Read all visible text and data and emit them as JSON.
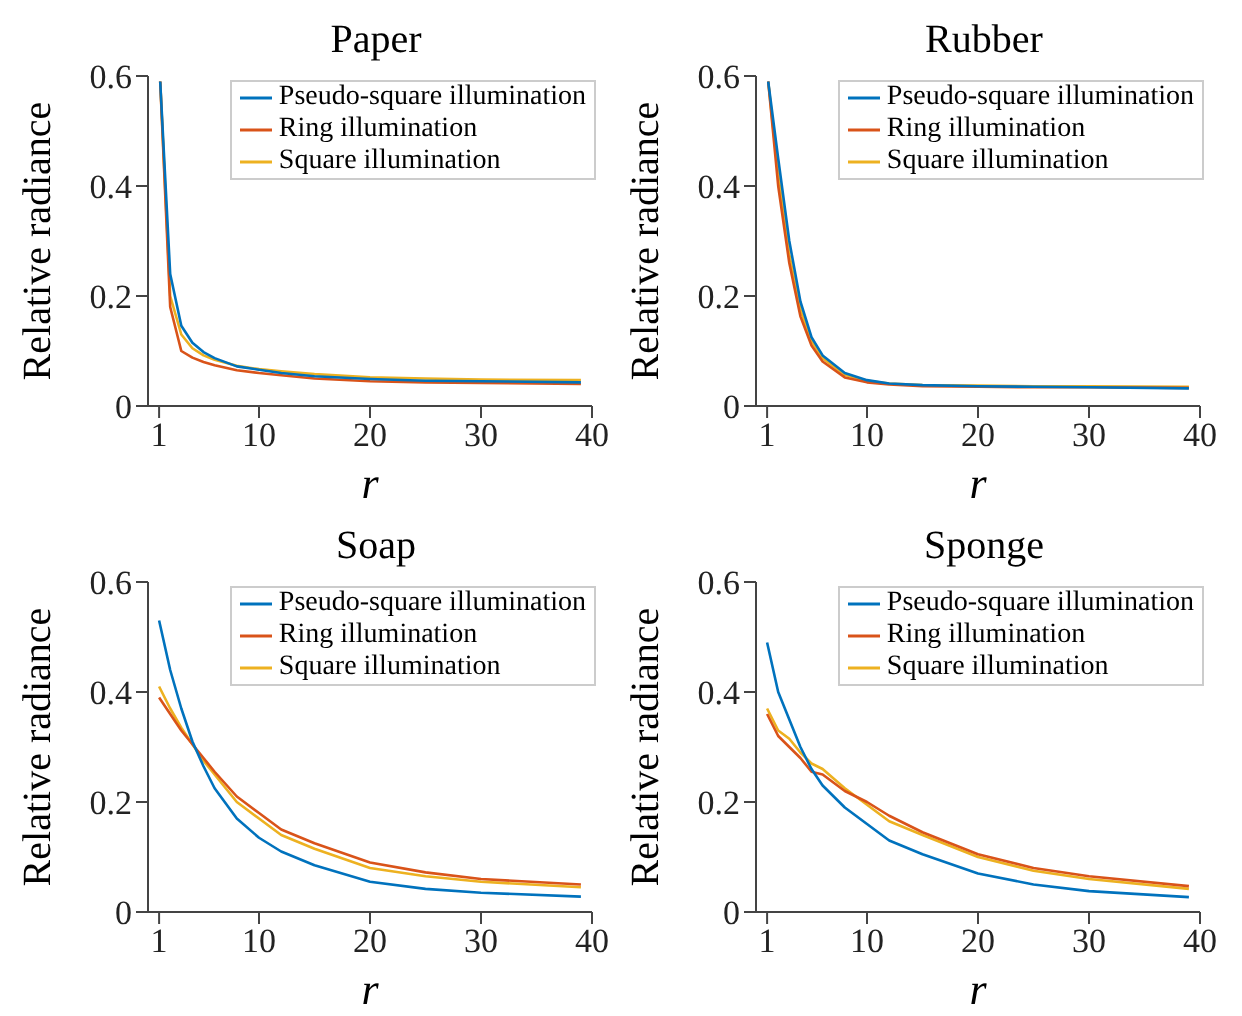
{
  "chart_data": [
    {
      "type": "line",
      "title": "Paper",
      "xlabel": "r",
      "ylabel": "Relative radiance",
      "x": [
        1.1,
        2,
        3,
        4,
        5,
        6,
        8,
        10,
        12,
        15,
        20,
        25,
        30,
        39
      ],
      "xlim": [
        0,
        40
      ],
      "xticks": [
        1,
        10,
        20,
        30,
        40
      ],
      "ylim": [
        0,
        0.6
      ],
      "yticks": [
        0,
        0.2,
        0.4,
        0.6
      ],
      "grid": false,
      "legend": "top right",
      "marker": "none",
      "line_style": "solid",
      "series": [
        {
          "name": "Pseudo-square illumination",
          "color": "#0072bd",
          "values": [
            0.59,
            0.24,
            0.146,
            0.115,
            0.098,
            0.087,
            0.072,
            0.066,
            0.06,
            0.054,
            0.049,
            0.046,
            0.045,
            0.043
          ]
        },
        {
          "name": "Ring illumination",
          "color": "#d95319",
          "values": [
            0.59,
            0.18,
            0.1,
            0.088,
            0.08,
            0.074,
            0.065,
            0.06,
            0.056,
            0.05,
            0.045,
            0.043,
            0.042,
            0.04
          ]
        },
        {
          "name": "Square illumination",
          "color": "#edb120",
          "values": [
            0.59,
            0.2,
            0.13,
            0.105,
            0.092,
            0.084,
            0.073,
            0.067,
            0.063,
            0.058,
            0.052,
            0.05,
            0.048,
            0.047
          ]
        }
      ]
    },
    {
      "type": "line",
      "title": "Rubber",
      "xlabel": "r",
      "ylabel": "Relative radiance",
      "x": [
        1.1,
        2,
        3,
        4,
        5,
        6,
        8,
        10,
        12,
        15,
        20,
        25,
        30,
        39
      ],
      "xlim": [
        0,
        40
      ],
      "xticks": [
        1,
        10,
        20,
        30,
        40
      ],
      "ylim": [
        0,
        0.6
      ],
      "yticks": [
        0,
        0.2,
        0.4,
        0.6
      ],
      "grid": false,
      "legend": "top right",
      "marker": "none",
      "line_style": "solid",
      "series": [
        {
          "name": "Pseudo-square illumination",
          "color": "#0072bd",
          "values": [
            0.59,
            0.45,
            0.3,
            0.19,
            0.125,
            0.092,
            0.06,
            0.047,
            0.041,
            0.038,
            0.036,
            0.035,
            0.034,
            0.032
          ]
        },
        {
          "name": "Ring illumination",
          "color": "#d95319",
          "values": [
            0.59,
            0.4,
            0.26,
            0.163,
            0.11,
            0.081,
            0.052,
            0.043,
            0.039,
            0.036,
            0.035,
            0.034,
            0.034,
            0.033
          ]
        },
        {
          "name": "Square illumination",
          "color": "#edb120",
          "values": [
            0.59,
            0.42,
            0.275,
            0.175,
            0.118,
            0.087,
            0.057,
            0.046,
            0.041,
            0.038,
            0.037,
            0.036,
            0.036,
            0.035
          ]
        }
      ]
    },
    {
      "type": "line",
      "title": "Soap",
      "xlabel": "r",
      "ylabel": "Relative radiance",
      "x": [
        1,
        2,
        3,
        4,
        5,
        6,
        8,
        10,
        12,
        15,
        20,
        25,
        30,
        39
      ],
      "xlim": [
        0,
        40
      ],
      "xticks": [
        1,
        10,
        20,
        30,
        40
      ],
      "ylim": [
        0,
        0.6
      ],
      "yticks": [
        0,
        0.2,
        0.4,
        0.6
      ],
      "grid": false,
      "legend": "top right",
      "marker": "none",
      "line_style": "solid",
      "series": [
        {
          "name": "Pseudo-square illumination",
          "color": "#0072bd",
          "values": [
            0.53,
            0.44,
            0.37,
            0.31,
            0.265,
            0.225,
            0.17,
            0.135,
            0.11,
            0.085,
            0.055,
            0.042,
            0.035,
            0.028
          ]
        },
        {
          "name": "Ring illumination",
          "color": "#d95319",
          "values": [
            0.39,
            0.36,
            0.33,
            0.305,
            0.28,
            0.255,
            0.21,
            0.18,
            0.15,
            0.125,
            0.09,
            0.072,
            0.06,
            0.05
          ]
        },
        {
          "name": "Square illumination",
          "color": "#edb120",
          "values": [
            0.41,
            0.37,
            0.335,
            0.305,
            0.275,
            0.25,
            0.2,
            0.17,
            0.14,
            0.115,
            0.08,
            0.065,
            0.055,
            0.045
          ]
        }
      ]
    },
    {
      "type": "line",
      "title": "Sponge",
      "xlabel": "r",
      "ylabel": "Relative radiance",
      "x": [
        1,
        2,
        3,
        4,
        5,
        6,
        8,
        10,
        12,
        15,
        20,
        25,
        30,
        39
      ],
      "xlim": [
        0,
        40
      ],
      "xticks": [
        1,
        10,
        20,
        30,
        40
      ],
      "ylim": [
        0,
        0.6
      ],
      "yticks": [
        0,
        0.2,
        0.4,
        0.6
      ],
      "grid": false,
      "legend": "top right",
      "marker": "none",
      "line_style": "solid",
      "series": [
        {
          "name": "Pseudo-square illumination",
          "color": "#0072bd",
          "values": [
            0.49,
            0.4,
            0.35,
            0.3,
            0.26,
            0.23,
            0.19,
            0.16,
            0.13,
            0.105,
            0.07,
            0.05,
            0.038,
            0.027
          ]
        },
        {
          "name": "Ring illumination",
          "color": "#d95319",
          "values": [
            0.36,
            0.32,
            0.3,
            0.28,
            0.255,
            0.25,
            0.22,
            0.2,
            0.175,
            0.145,
            0.105,
            0.08,
            0.065,
            0.047
          ]
        },
        {
          "name": "Square illumination",
          "color": "#edb120",
          "values": [
            0.37,
            0.33,
            0.315,
            0.29,
            0.27,
            0.26,
            0.225,
            0.195,
            0.165,
            0.14,
            0.1,
            0.075,
            0.06,
            0.042
          ]
        }
      ]
    }
  ]
}
